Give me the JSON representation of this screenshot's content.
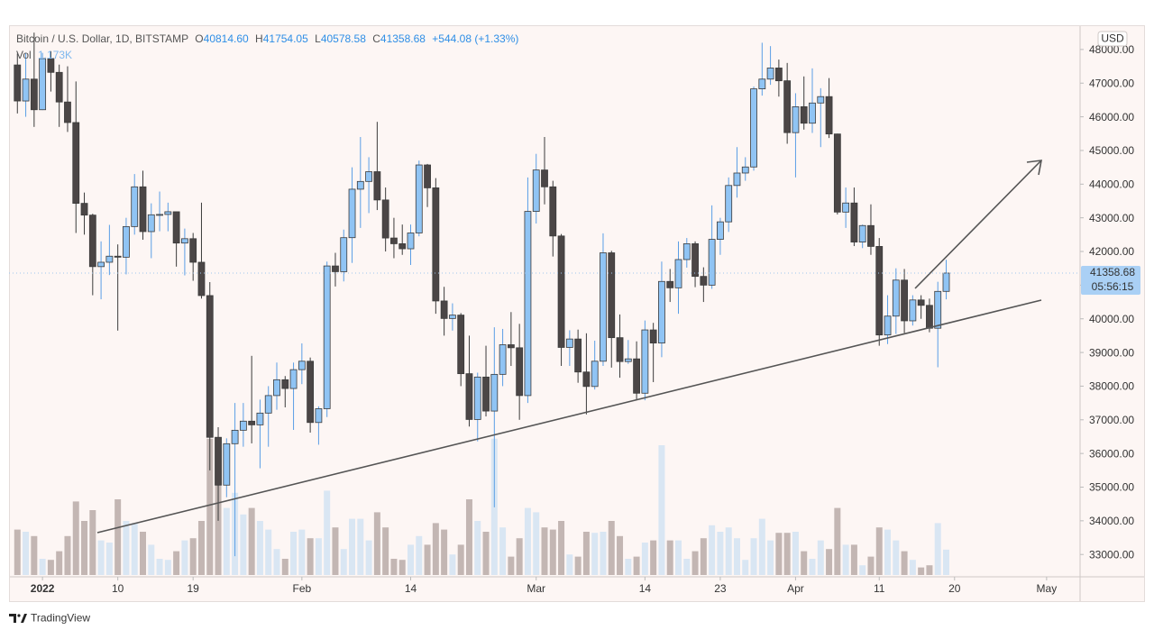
{
  "header": {
    "symbol": "Bitcoin / U.S. Dollar, 1D, BITSTAMP",
    "ohlc": [
      {
        "label": "O",
        "value": "40814.60"
      },
      {
        "label": "H",
        "value": "41754.05"
      },
      {
        "label": "L",
        "value": "40578.58"
      },
      {
        "label": "C",
        "value": "41358.68"
      }
    ],
    "change": "+544.08 (+1.33%)",
    "volume_label": "Vol",
    "volume_value": "1.173K"
  },
  "currency_button": "USD",
  "countdown": "05:56:15",
  "footer": "TradingView",
  "chart_data": {
    "type": "candlestick",
    "x": [
      "2021-12-29",
      "2021-12-30",
      "2021-12-31",
      "2022-01-01",
      "2022-01-02",
      "2022-01-03",
      "2022-01-04",
      "2022-01-05",
      "2022-01-06",
      "2022-01-07",
      "2022-01-08",
      "2022-01-09",
      "2022-01-10",
      "2022-01-11",
      "2022-01-12",
      "2022-01-13",
      "2022-01-14",
      "2022-01-15",
      "2022-01-16",
      "2022-01-17",
      "2022-01-18",
      "2022-01-19",
      "2022-01-20",
      "2022-01-21",
      "2022-01-22",
      "2022-01-23",
      "2022-01-24",
      "2022-01-25",
      "2022-01-26",
      "2022-01-27",
      "2022-01-28",
      "2022-01-29",
      "2022-01-30",
      "2022-01-31",
      "2022-02-01",
      "2022-02-02",
      "2022-02-03",
      "2022-02-04",
      "2022-02-05",
      "2022-02-06",
      "2022-02-07",
      "2022-02-08",
      "2022-02-09",
      "2022-02-10",
      "2022-02-11",
      "2022-02-12",
      "2022-02-13",
      "2022-02-14",
      "2022-02-15",
      "2022-02-16",
      "2022-02-17",
      "2022-02-18",
      "2022-02-19",
      "2022-02-20",
      "2022-02-21",
      "2022-02-22",
      "2022-02-23",
      "2022-02-24",
      "2022-02-25",
      "2022-02-26",
      "2022-02-27",
      "2022-02-28",
      "2022-03-01",
      "2022-03-02",
      "2022-03-03",
      "2022-03-04",
      "2022-03-05",
      "2022-03-06",
      "2022-03-07",
      "2022-03-08",
      "2022-03-09",
      "2022-03-10",
      "2022-03-11",
      "2022-03-12",
      "2022-03-13",
      "2022-03-14",
      "2022-03-15",
      "2022-03-16",
      "2022-03-17",
      "2022-03-18",
      "2022-03-19",
      "2022-03-20",
      "2022-03-21",
      "2022-03-22",
      "2022-03-23",
      "2022-03-24",
      "2022-03-25",
      "2022-03-26",
      "2022-03-27",
      "2022-03-28",
      "2022-03-29",
      "2022-03-30",
      "2022-03-31",
      "2022-04-01",
      "2022-04-02",
      "2022-04-03",
      "2022-04-04",
      "2022-04-05",
      "2022-04-06",
      "2022-04-07",
      "2022-04-08",
      "2022-04-09",
      "2022-04-10",
      "2022-04-11",
      "2022-04-12",
      "2022-04-13",
      "2022-04-14",
      "2022-04-15",
      "2022-04-16",
      "2022-04-17",
      "2022-04-18",
      "2022-04-19"
    ],
    "open": [
      47540,
      46470,
      47120,
      46210,
      47730,
      47320,
      46440,
      45830,
      43430,
      43080,
      41550,
      41680,
      41860,
      41830,
      42740,
      43920,
      42590,
      43090,
      43100,
      43180,
      42250,
      42380,
      41680,
      40690,
      36480,
      35060,
      36290,
      36690,
      36960,
      36850,
      37200,
      37720,
      38190,
      37930,
      38490,
      38740,
      36920,
      37330,
      41570,
      41400,
      42410,
      43850,
      44080,
      44370,
      43530,
      42400,
      42230,
      42080,
      42550,
      44570,
      43890,
      40530,
      40010,
      40110,
      38370,
      37010,
      38270,
      37260,
      38350,
      39230,
      39140,
      37720,
      43190,
      44420,
      43920,
      42460,
      39150,
      39400,
      38420,
      37990,
      38740,
      41960,
      39440,
      38730,
      38810,
      37790,
      39670,
      39280,
      41110,
      40920,
      41760,
      42230,
      41260,
      41000,
      42360,
      42880,
      43960,
      44330,
      44510,
      46830,
      47120,
      47450,
      47070,
      45530,
      46300,
      45810,
      46410,
      46600,
      45490,
      43170,
      43440,
      42280,
      42770,
      42150,
      39520,
      40080,
      41150,
      39940,
      40560,
      40400,
      39720,
      40814.6
    ],
    "high": [
      47880,
      47900,
      48500,
      47900,
      47950,
      47550,
      47500,
      47050,
      43750,
      43120,
      42300,
      42790,
      42210,
      43000,
      44300,
      44400,
      43430,
      43780,
      43450,
      43180,
      42680,
      42550,
      43450,
      41090,
      36780,
      36450,
      37500,
      37500,
      38900,
      37600,
      38000,
      38700,
      38300,
      38700,
      39270,
      38850,
      37400,
      41700,
      41960,
      42650,
      44500,
      45400,
      44800,
      45850,
      43900,
      43000,
      42800,
      42800,
      44700,
      44600,
      44180,
      40950,
      40460,
      40170,
      39500,
      38400,
      39200,
      39750,
      39700,
      40200,
      39850,
      44200,
      44900,
      45400,
      44100,
      42520,
      39660,
      39680,
      39570,
      39350,
      42540,
      42020,
      40130,
      39370,
      39330,
      39950,
      39880,
      41700,
      41480,
      42300,
      42400,
      42300,
      41530,
      43370,
      43000,
      44200,
      45100,
      44800,
      46900,
      48200,
      48100,
      47700,
      47600,
      46700,
      47200,
      47440,
      46850,
      47150,
      45500,
      43900,
      43900,
      42800,
      43400,
      42400,
      40700,
      41500,
      41480,
      40700,
      40700,
      40600,
      41100,
      41754.05
    ],
    "low": [
      46100,
      46000,
      45700,
      46200,
      46750,
      45700,
      45550,
      42550,
      42500,
      40700,
      40580,
      41300,
      39650,
      41320,
      42500,
      42350,
      41800,
      42600,
      42600,
      41550,
      41290,
      41130,
      40600,
      35500,
      34000,
      34700,
      32950,
      36200,
      36300,
      35560,
      36200,
      37300,
      37370,
      36700,
      38060,
      36620,
      36260,
      37080,
      40960,
      41110,
      41660,
      42700,
      43140,
      43230,
      42000,
      41800,
      41900,
      41600,
      42450,
      43320,
      40150,
      39500,
      39650,
      38000,
      36800,
      36360,
      37100,
      34400,
      38000,
      38600,
      37000,
      37500,
      42830,
      43400,
      41850,
      38600,
      38600,
      38100,
      37160,
      37900,
      38600,
      38550,
      38250,
      38660,
      37600,
      37580,
      38120,
      38860,
      40500,
      40150,
      41520,
      40940,
      40500,
      40890,
      41900,
      42580,
      43600,
      44100,
      44400,
      46630,
      46950,
      46600,
      45200,
      44200,
      45620,
      45520,
      45100,
      45370,
      43100,
      42700,
      42160,
      42100,
      41900,
      39200,
      39250,
      39550,
      39580,
      39800,
      40000,
      39600,
      38560,
      40578.58
    ],
    "close": [
      46470,
      47120,
      46210,
      47730,
      47320,
      46440,
      45830,
      43430,
      43080,
      41550,
      41680,
      41860,
      41830,
      42740,
      43920,
      42590,
      43090,
      43100,
      43180,
      42250,
      42380,
      41680,
      40690,
      36480,
      35060,
      36290,
      36690,
      36960,
      36850,
      37200,
      37720,
      38190,
      37930,
      38490,
      38740,
      36920,
      37330,
      41570,
      41400,
      42410,
      43850,
      44080,
      44370,
      43530,
      42400,
      42230,
      42080,
      42550,
      44570,
      43890,
      40530,
      40010,
      40110,
      38370,
      37010,
      38270,
      37260,
      38350,
      39230,
      39140,
      37720,
      43190,
      44420,
      43920,
      42460,
      39150,
      39400,
      38420,
      37990,
      38740,
      41960,
      39440,
      38730,
      38810,
      37790,
      39670,
      39280,
      41110,
      40920,
      41760,
      42230,
      41260,
      41000,
      42360,
      42880,
      43960,
      44330,
      44510,
      46830,
      47120,
      47450,
      47070,
      45530,
      46300,
      45810,
      46410,
      46600,
      45490,
      43170,
      43440,
      42280,
      42770,
      42150,
      39520,
      40080,
      41150,
      39940,
      40560,
      40400,
      39720,
      40814.6,
      41358.68
    ],
    "volume": [
      2100,
      2000,
      1800,
      750,
      700,
      1100,
      1800,
      3400,
      2500,
      3000,
      1600,
      1500,
      3500,
      2500,
      2400,
      2000,
      1400,
      750,
      700,
      1100,
      1600,
      1700,
      2500,
      6300,
      6300,
      3100,
      3800,
      2800,
      3100,
      2500,
      2100,
      1200,
      750,
      2000,
      2100,
      1700,
      1700,
      3900,
      2200,
      1200,
      2600,
      2600,
      1600,
      2900,
      2200,
      750,
      700,
      1400,
      1800,
      1400,
      2400,
      2100,
      950,
      1400,
      3500,
      2500,
      2000,
      6300,
      2200,
      850,
      1700,
      3100,
      2900,
      2200,
      2100,
      2500,
      950,
      850,
      2000,
      1950,
      2000,
      2500,
      1800,
      750,
      850,
      1500,
      1600,
      6000,
      1600,
      1600,
      750,
      1100,
      1700,
      2300,
      2000,
      2200,
      1700,
      700,
      1700,
      2600,
      1600,
      1950,
      1950,
      2000,
      1100,
      750,
      1600,
      1200,
      3100,
      1400,
      1400,
      450,
      850,
      2200,
      2100,
      1600,
      1100,
      700,
      350,
      450,
      2400,
      1173
    ],
    "up_color": "#90c4f4",
    "down_color": "#4b4646",
    "border_color": "#3b3b3b",
    "volume_up_color": "#d9e6f3",
    "volume_down_color": "#c3b6b3",
    "xlim": [
      "2021-12-28",
      "2022-05-05"
    ],
    "xticks": [
      {
        "value": "2022-01-01",
        "label": "2022"
      },
      {
        "value": "2022-01-10",
        "label": "10"
      },
      {
        "value": "2022-01-19",
        "label": "19"
      },
      {
        "value": "2022-02-01",
        "label": "Feb"
      },
      {
        "value": "2022-02-14",
        "label": "14"
      },
      {
        "value": "2022-03-01",
        "label": "Mar"
      },
      {
        "value": "2022-03-14",
        "label": "14"
      },
      {
        "value": "2022-03-23",
        "label": "23"
      },
      {
        "value": "2022-04-01",
        "label": "Apr"
      },
      {
        "value": "2022-04-11",
        "label": "11"
      },
      {
        "value": "2022-04-20",
        "label": "20"
      },
      {
        "value": "2022-05-01",
        "label": "May"
      }
    ],
    "ylim": [
      32390,
      48720
    ],
    "yticks": [
      {
        "value": 33000,
        "label": "33000.00"
      },
      {
        "value": 34000,
        "label": "34000.00"
      },
      {
        "value": 35000,
        "label": "35000.00"
      },
      {
        "value": 36000,
        "label": "36000.00"
      },
      {
        "value": 37000,
        "label": "37000.00"
      },
      {
        "value": 38000,
        "label": "38000.00"
      },
      {
        "value": 39000,
        "label": "39000.00"
      },
      {
        "value": 40000,
        "label": "40000.00"
      },
      {
        "value": 41000,
        "label": "41000.00"
      },
      {
        "value": 42000,
        "label": "42000.00"
      },
      {
        "value": 43000,
        "label": "43000.00"
      },
      {
        "value": 44000,
        "label": "44000.00"
      },
      {
        "value": 45000,
        "label": "45000.00"
      },
      {
        "value": 46000,
        "label": "46000.00"
      },
      {
        "value": 47000,
        "label": "47000.00"
      },
      {
        "value": 48000,
        "label": "48000.00"
      }
    ],
    "grid": false
  }
}
